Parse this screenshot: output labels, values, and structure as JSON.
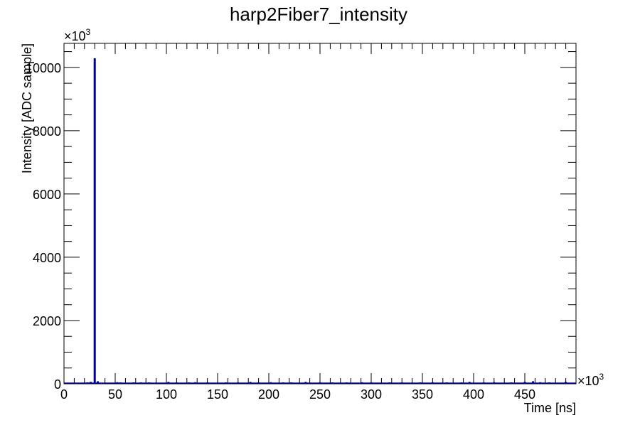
{
  "chart_data": {
    "type": "bar",
    "title": "harp2Fiber7_intensity",
    "xlabel": "Time [ns]",
    "ylabel": "Intensity [ADC sample]",
    "x_multiplier": "×10",
    "x_multiplier_exp": "3",
    "y_multiplier": "×10",
    "y_multiplier_exp": "3",
    "xlim": [
      0,
      500
    ],
    "ylim": [
      0,
      10760
    ],
    "x_ticks": [
      0,
      50,
      100,
      150,
      200,
      250,
      300,
      350,
      400,
      450
    ],
    "y_ticks": [
      0,
      2000,
      4000,
      6000,
      8000,
      10000
    ],
    "grid": false,
    "line_color": "#000099",
    "x": [
      23,
      26,
      30,
      33,
      52,
      55,
      68,
      75,
      83,
      102,
      110,
      122,
      128,
      140,
      158,
      170,
      182,
      190,
      202,
      214,
      222,
      236,
      250,
      262,
      276,
      291,
      300,
      318,
      330,
      348,
      360,
      374,
      388,
      396,
      410,
      420,
      437,
      450,
      458,
      465,
      474,
      490
    ],
    "values": [
      40,
      60,
      10290,
      80,
      50,
      40,
      30,
      40,
      30,
      60,
      40,
      30,
      50,
      40,
      30,
      40,
      60,
      40,
      50,
      30,
      40,
      60,
      30,
      40,
      30,
      50,
      40,
      30,
      40,
      30,
      50,
      40,
      30,
      60,
      40,
      50,
      40,
      60,
      80,
      50,
      40,
      60
    ]
  }
}
